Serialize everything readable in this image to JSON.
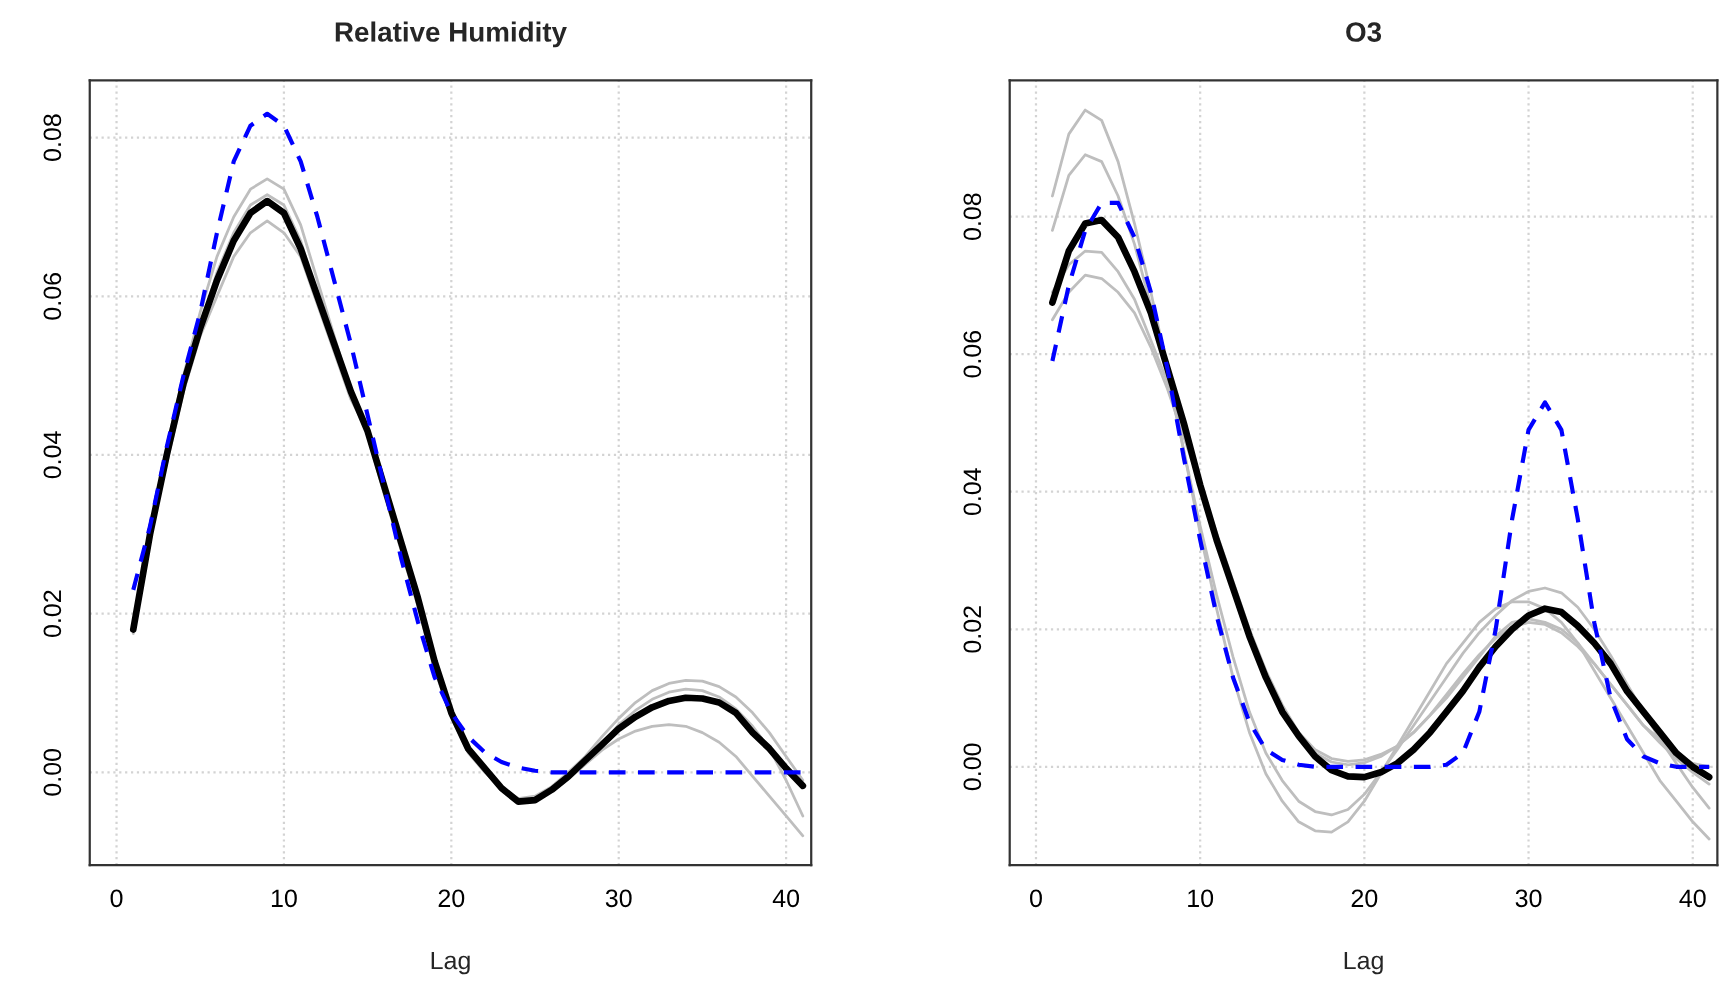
{
  "chart_data": [
    {
      "type": "line",
      "title": "Relative Humidity",
      "xlabel": "Lag",
      "x": [
        1,
        2,
        3,
        4,
        5,
        6,
        7,
        8,
        9,
        10,
        11,
        12,
        13,
        14,
        15,
        16,
        17,
        18,
        19,
        20,
        21,
        22,
        23,
        24,
        25,
        26,
        27,
        28,
        29,
        30,
        31,
        32,
        33,
        34,
        35,
        36,
        37,
        38,
        39,
        40,
        41
      ],
      "xlim": [
        -1.6,
        41.5
      ],
      "ylim": [
        -0.0117,
        0.0872
      ],
      "xticks": [
        0,
        10,
        20,
        30,
        40
      ],
      "yticks": [
        {
          "value": 0,
          "label": "0.00"
        },
        {
          "value": 0.02,
          "label": "0.02"
        },
        {
          "value": 0.04,
          "label": "0.04"
        },
        {
          "value": 0.06,
          "label": "0.06"
        },
        {
          "value": 0.08,
          "label": "0.08"
        }
      ],
      "grid": true,
      "legend": false,
      "series": [
        {
          "color": "#bebebe",
          "line_style": "solid",
          "values": [
            0.0175,
            0.03,
            0.041,
            0.05,
            0.058,
            0.065,
            0.07,
            0.0735,
            0.0748,
            0.0735,
            0.069,
            0.062,
            0.055,
            0.048,
            0.0425,
            0.035,
            0.028,
            0.021,
            0.013,
            0.007,
            0.0025,
            0,
            -0.002,
            -0.0033,
            -0.003,
            -0.0018,
            0,
            0.002,
            0.0045,
            0.0068,
            0.0088,
            0.0103,
            0.0112,
            0.0116,
            0.0115,
            0.0108,
            0.0095,
            0.0075,
            0.005,
            0.002,
            -0.001
          ]
        },
        {
          "color": "#bebebe",
          "line_style": "solid",
          "values": [
            0.0185,
            0.03,
            0.039,
            0.048,
            0.055,
            0.06,
            0.065,
            0.068,
            0.0695,
            0.068,
            0.065,
            0.059,
            0.053,
            0.047,
            0.043,
            0.036,
            0.029,
            0.022,
            0.0145,
            0.008,
            0.0033,
            0.0006,
            -0.0018,
            -0.0035,
            -0.0034,
            -0.0024,
            -0.0008,
            0.001,
            0.0028,
            0.0042,
            0.0052,
            0.0058,
            0.006,
            0.0058,
            0.005,
            0.0038,
            0.002,
            -0.0005,
            -0.003,
            -0.0055,
            -0.008
          ]
        },
        {
          "color": "#bebebe",
          "line_style": "solid",
          "values": [
            0.018,
            0.03,
            0.04,
            0.049,
            0.056,
            0.063,
            0.068,
            0.0715,
            0.0728,
            0.0715,
            0.067,
            0.06,
            0.054,
            0.048,
            0.043,
            0.036,
            0.029,
            0.022,
            0.014,
            0.0075,
            0.003,
            0.0005,
            -0.002,
            -0.0037,
            -0.0035,
            -0.0022,
            -0.0005,
            0.0015,
            0.0035,
            0.006,
            0.0078,
            0.0092,
            0.0101,
            0.0105,
            0.0103,
            0.0095,
            0.008,
            0.0058,
            0.003,
            -0.001,
            -0.0055
          ]
        },
        {
          "color": "#000000",
          "line_style": "solid",
          "values": [
            0.018,
            0.03,
            0.04,
            0.049,
            0.056,
            0.062,
            0.067,
            0.0705,
            0.072,
            0.0705,
            0.066,
            0.06,
            0.054,
            0.048,
            0.043,
            0.036,
            0.029,
            0.022,
            0.014,
            0.0075,
            0.003,
            0.0005,
            -0.002,
            -0.0037,
            -0.0035,
            -0.0022,
            -0.0005,
            0.0015,
            0.0035,
            0.0055,
            0.007,
            0.0082,
            0.009,
            0.0094,
            0.0093,
            0.0088,
            0.0075,
            0.005,
            0.003,
            0.0005,
            -0.0017
          ]
        },
        {
          "color": "#0000ff",
          "line_style": "dashed",
          "values": [
            0.023,
            0.031,
            0.041,
            0.05,
            0.058,
            0.068,
            0.077,
            0.0815,
            0.083,
            0.0815,
            0.077,
            0.07,
            0.062,
            0.054,
            0.045,
            0.036,
            0.027,
            0.019,
            0.012,
            0.0075,
            0.0045,
            0.0025,
            0.0013,
            0.0006,
            0.0002,
            0,
            0,
            0,
            0,
            0,
            0,
            0,
            0,
            0,
            0,
            0,
            0,
            0,
            0,
            0,
            0
          ]
        }
      ]
    },
    {
      "type": "line",
      "title": "O3",
      "xlabel": "Lag",
      "x": [
        1,
        2,
        3,
        4,
        5,
        6,
        7,
        8,
        9,
        10,
        11,
        12,
        13,
        14,
        15,
        16,
        17,
        18,
        19,
        20,
        21,
        22,
        23,
        24,
        25,
        26,
        27,
        28,
        29,
        30,
        31,
        32,
        33,
        34,
        35,
        36,
        37,
        38,
        39,
        40,
        41
      ],
      "xlim": [
        -1.6,
        41.5
      ],
      "ylim": [
        -0.0143,
        0.0998
      ],
      "xticks": [
        0,
        10,
        20,
        30,
        40
      ],
      "yticks": [
        {
          "value": 0,
          "label": "0.00"
        },
        {
          "value": 0.02,
          "label": "0.02"
        },
        {
          "value": 0.04,
          "label": "0.04"
        },
        {
          "value": 0.06,
          "label": "0.06"
        },
        {
          "value": 0.08,
          "label": "0.08"
        }
      ],
      "grid": true,
      "legend": false,
      "series": [
        {
          "color": "#bebebe",
          "line_style": "solid",
          "values": [
            0.083,
            0.092,
            0.0955,
            0.094,
            0.088,
            0.079,
            0.069,
            0.058,
            0.046,
            0.034,
            0.023,
            0.013,
            0.005,
            -0.001,
            -0.005,
            -0.008,
            -0.0093,
            -0.0095,
            -0.008,
            -0.005,
            -0.001,
            0.003,
            0.007,
            0.011,
            0.015,
            0.018,
            0.021,
            0.023,
            0.024,
            0.024,
            0.023,
            0.021,
            0.018,
            0.014,
            0.01,
            0.006,
            0.002,
            -0.002,
            -0.005,
            -0.008,
            -0.0105
          ]
        },
        {
          "color": "#bebebe",
          "line_style": "solid",
          "values": [
            0.078,
            0.086,
            0.089,
            0.088,
            0.083,
            0.076,
            0.067,
            0.057,
            0.046,
            0.035,
            0.025,
            0.016,
            0.008,
            0.002,
            -0.002,
            -0.005,
            -0.0065,
            -0.007,
            -0.0062,
            -0.004,
            -0.0008,
            0.0025,
            0.006,
            0.0095,
            0.013,
            0.0165,
            0.0195,
            0.022,
            0.0242,
            0.0255,
            0.026,
            0.0253,
            0.0232,
            0.02,
            0.0162,
            0.012,
            0.008,
            0.004,
            0.0005,
            -0.003,
            -0.006
          ]
        },
        {
          "color": "#bebebe",
          "line_style": "solid",
          "values": [
            0.065,
            0.069,
            0.0715,
            0.071,
            0.069,
            0.066,
            0.061,
            0.055,
            0.048,
            0.041,
            0.034,
            0.027,
            0.02,
            0.014,
            0.009,
            0.005,
            0.0025,
            0.0012,
            0.0008,
            0.001,
            0.0018,
            0.003,
            0.005,
            0.0075,
            0.01,
            0.013,
            0.016,
            0.019,
            0.021,
            0.0215,
            0.021,
            0.02,
            0.018,
            0.015,
            0.012,
            0.009,
            0.006,
            0.004,
            0.002,
            0.0005,
            0
          ]
        },
        {
          "color": "#bebebe",
          "line_style": "solid",
          "values": [
            0.069,
            0.073,
            0.075,
            0.0748,
            0.072,
            0.068,
            0.062,
            0.056,
            0.049,
            0.041,
            0.033,
            0.026,
            0.019,
            0.013,
            0.008,
            0.0045,
            0.002,
            0.0007,
            0.0003,
            0.0006,
            0.0015,
            0.003,
            0.005,
            0.0075,
            0.0105,
            0.0135,
            0.0163,
            0.0187,
            0.0203,
            0.021,
            0.0207,
            0.0195,
            0.0175,
            0.015,
            0.012,
            0.009,
            0.006,
            0.0035,
            0.0012,
            -0.0008,
            -0.0025
          ]
        },
        {
          "color": "#000000",
          "line_style": "solid",
          "values": [
            0.0675,
            0.075,
            0.079,
            0.0795,
            0.077,
            0.072,
            0.066,
            0.058,
            0.05,
            0.041,
            0.033,
            0.026,
            0.019,
            0.013,
            0.008,
            0.0045,
            0.0015,
            -0.0005,
            -0.0014,
            -0.0015,
            -0.0008,
            0.0005,
            0.0025,
            0.005,
            0.008,
            0.011,
            0.0145,
            0.0175,
            0.02,
            0.022,
            0.023,
            0.0225,
            0.0205,
            0.018,
            0.015,
            0.011,
            0.008,
            0.005,
            0.002,
            0,
            -0.0015
          ]
        },
        {
          "color": "#0000ff",
          "line_style": "dashed",
          "values": [
            0.059,
            0.07,
            0.078,
            0.082,
            0.082,
            0.077,
            0.069,
            0.058,
            0.045,
            0.033,
            0.022,
            0.013,
            0.0065,
            0.0025,
            0.001,
            0.0003,
            0,
            0,
            0,
            0,
            0,
            0,
            0,
            0,
            0.0003,
            0.002,
            0.008,
            0.02,
            0.036,
            0.049,
            0.053,
            0.049,
            0.036,
            0.021,
            0.01,
            0.004,
            0.0015,
            0.0005,
            0,
            0,
            0
          ]
        }
      ]
    }
  ]
}
